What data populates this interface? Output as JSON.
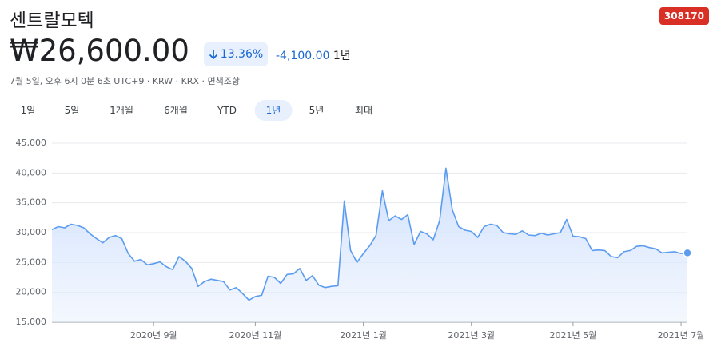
{
  "header": {
    "title": "센트랄모텍",
    "ticker": "308170",
    "price": "₩26,600.00",
    "change_percent": "13.36%",
    "change_value": "-4,100.00",
    "change_period": "1년",
    "subline": "7월 5일, 오후 6시 0분 6초 UTC+9 · KRW · KRX · 면책조항"
  },
  "tabs": {
    "items": [
      "1일",
      "5일",
      "1개월",
      "6개월",
      "YTD",
      "1년",
      "5년",
      "최대"
    ],
    "selected": 5
  },
  "chart_data": {
    "type": "line",
    "color": "#5b9cf0",
    "categories": [
      null,
      null,
      null,
      null,
      null,
      null,
      null,
      null,
      null,
      null,
      null,
      null,
      null,
      null,
      null,
      null,
      "2020년 9월",
      null,
      null,
      null,
      null,
      null,
      null,
      null,
      null,
      null,
      null,
      null,
      null,
      null,
      null,
      null,
      "2020년 11월",
      null,
      null,
      null,
      null,
      null,
      null,
      null,
      null,
      null,
      null,
      null,
      null,
      null,
      null,
      null,
      null,
      "2021년 1월",
      null,
      null,
      null,
      null,
      null,
      null,
      null,
      null,
      null,
      null,
      null,
      null,
      null,
      null,
      null,
      null,
      "2021년 3월",
      null,
      null,
      null,
      null,
      null,
      null,
      null,
      null,
      null,
      null,
      null,
      null,
      null,
      null,
      null,
      "2021년 5월",
      null,
      null,
      null,
      null,
      null,
      null,
      null,
      null,
      null,
      null,
      null,
      null,
      null,
      null,
      null,
      null,
      "2021년 7월",
      null
    ],
    "values": [
      30500,
      31000,
      30800,
      31400,
      31200,
      30800,
      29800,
      29000,
      28300,
      29200,
      29500,
      29000,
      26500,
      25200,
      25500,
      24600,
      24800,
      25100,
      24300,
      23800,
      26000,
      25200,
      24000,
      21000,
      21800,
      22200,
      22000,
      21800,
      20400,
      20800,
      19800,
      18700,
      19300,
      19500,
      22700,
      22500,
      21500,
      23000,
      23100,
      24000,
      22000,
      22800,
      21200,
      20800,
      21000,
      21100,
      35300,
      27000,
      25000,
      26500,
      27800,
      29500,
      37000,
      32000,
      32800,
      32200,
      33000,
      28000,
      30200,
      29800,
      28800,
      32000,
      40800,
      33800,
      31000,
      30400,
      30200,
      29200,
      31000,
      31400,
      31200,
      30000,
      29800,
      29700,
      30300,
      29600,
      29500,
      29900,
      29600,
      29800,
      30000,
      32200,
      29400,
      29300,
      29000,
      27000,
      27100,
      27000,
      26000,
      25800,
      26800,
      27000,
      27700,
      27800,
      27500,
      27300,
      26600,
      26700,
      26800,
      26500,
      26600
    ],
    "ylim": [
      15000,
      45000
    ],
    "yticks": [
      {
        "value": 15000,
        "label": "15,000"
      },
      {
        "value": 20000,
        "label": "20,000"
      },
      {
        "value": 25000,
        "label": "25,000"
      },
      {
        "value": 30000,
        "label": "30,000"
      },
      {
        "value": 35000,
        "label": "35,000"
      },
      {
        "value": 40000,
        "label": "40,000"
      },
      {
        "value": 45000,
        "label": "45,000"
      }
    ],
    "grid": true
  }
}
